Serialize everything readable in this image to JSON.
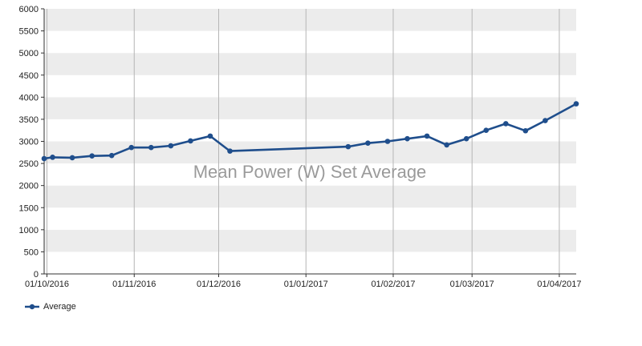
{
  "chart_data": {
    "type": "line",
    "title": "Mean Power (W) Set Average",
    "xlabel": "",
    "ylabel": "",
    "ylim": [
      0,
      6000
    ],
    "yticks": [
      0,
      500,
      1000,
      1500,
      2000,
      2500,
      3000,
      3500,
      4000,
      4500,
      5000,
      5500,
      6000
    ],
    "xlim": [
      "2016-09-30",
      "2017-04-07"
    ],
    "xticks": [
      {
        "date": "2016-10-01",
        "label": "01/10/2016"
      },
      {
        "date": "2016-11-01",
        "label": "01/11/2016"
      },
      {
        "date": "2016-12-01",
        "label": "01/12/2016"
      },
      {
        "date": "2017-01-01",
        "label": "01/01/2017"
      },
      {
        "date": "2017-02-01",
        "label": "01/02/2017"
      },
      {
        "date": "2017-03-01",
        "label": "01/03/2017"
      },
      {
        "date": "2017-04-01",
        "label": "01/04/2017"
      }
    ],
    "grid": {
      "vertical": true,
      "horizontal_bands": true
    },
    "legend_position": "bottom-left",
    "series": [
      {
        "name": "Average",
        "color": "#1f4e8c",
        "points": [
          {
            "date": "2016-09-30",
            "y": 2610
          },
          {
            "date": "2016-10-03",
            "y": 2640
          },
          {
            "date": "2016-10-10",
            "y": 2630
          },
          {
            "date": "2016-10-17",
            "y": 2670
          },
          {
            "date": "2016-10-24",
            "y": 2680
          },
          {
            "date": "2016-10-31",
            "y": 2860
          },
          {
            "date": "2016-11-07",
            "y": 2860
          },
          {
            "date": "2016-11-14",
            "y": 2900
          },
          {
            "date": "2016-11-21",
            "y": 3010
          },
          {
            "date": "2016-11-28",
            "y": 3120
          },
          {
            "date": "2016-12-05",
            "y": 2780
          },
          {
            "date": "2017-01-16",
            "y": 2880
          },
          {
            "date": "2017-01-23",
            "y": 2960
          },
          {
            "date": "2017-01-30",
            "y": 3000
          },
          {
            "date": "2017-02-06",
            "y": 3060
          },
          {
            "date": "2017-02-13",
            "y": 3120
          },
          {
            "date": "2017-02-20",
            "y": 2920
          },
          {
            "date": "2017-02-27",
            "y": 3060
          },
          {
            "date": "2017-03-06",
            "y": 3250
          },
          {
            "date": "2017-03-13",
            "y": 3400
          },
          {
            "date": "2017-03-20",
            "y": 3240
          },
          {
            "date": "2017-03-27",
            "y": 3470
          },
          {
            "date": "2017-04-07",
            "y": 3850
          }
        ]
      }
    ]
  },
  "colors": {
    "band_light": "#ececec",
    "band_white": "#ffffff",
    "grid_line": "#b5b5b5",
    "axis": "#333333",
    "title_text": "#9a9a9a",
    "series": "#1f4e8c"
  }
}
